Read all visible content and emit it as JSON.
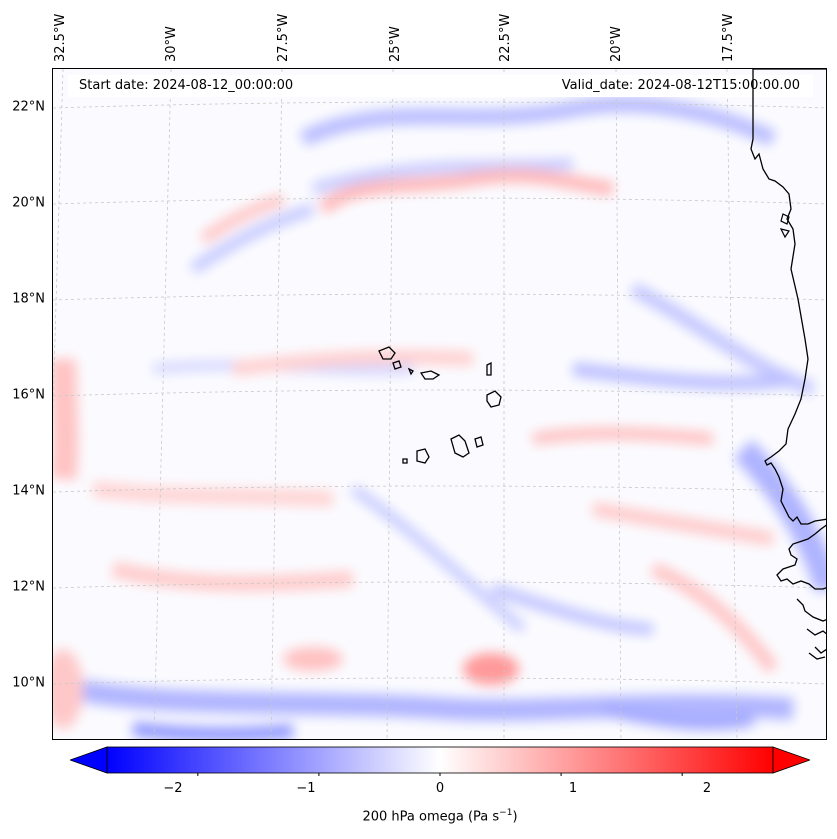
{
  "map": {
    "start_date": "Start date: 2024-08-12_00:00:00",
    "valid_date": "Valid_date: 2024-08-12T15:00:00.00",
    "lat_labels": [
      "22°N",
      "20°N",
      "18°N",
      "16°N",
      "14°N",
      "12°N",
      "10°N"
    ],
    "lon_labels": [
      "32.5°W",
      "30°W",
      "27.5°W",
      "25°W",
      "22.5°W",
      "20°W",
      "17.5°W"
    ],
    "field": "200 hPa omega",
    "features": [
      "coastline of West Africa",
      "Cape Verde islands"
    ]
  },
  "colorbar": {
    "label_main": "200 hPa omega (Pa s",
    "label_sup": "−1",
    "label_close": ")",
    "ticks": [
      "−2",
      "−1",
      "0",
      "1",
      "2"
    ],
    "tick_values": [
      -2,
      -1,
      0,
      1,
      2
    ],
    "range": [
      -2.75,
      2.75
    ],
    "colormap": "bwr",
    "color_low": "#0000ff",
    "color_mid": "#ffffff",
    "color_high": "#ff0000"
  }
}
